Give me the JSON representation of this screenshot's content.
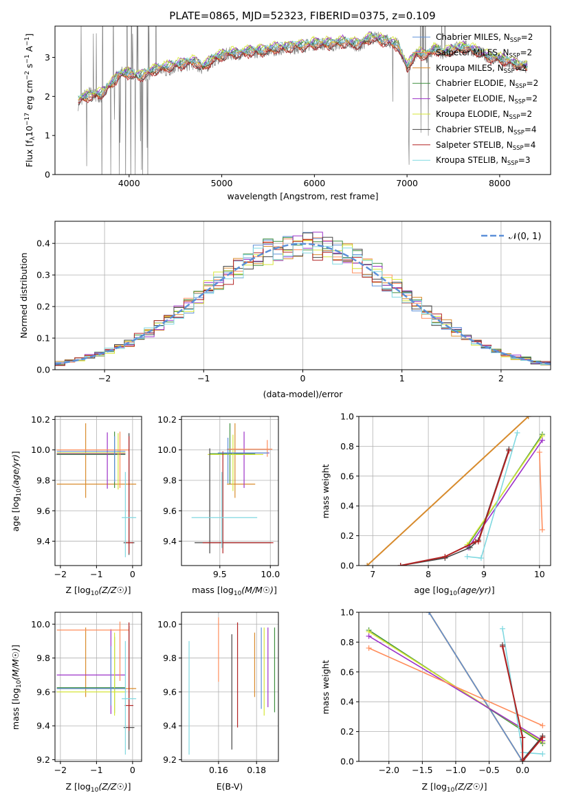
{
  "figure": {
    "title": "PLATE=0865, MJD=52323, FIBERID=0375, z=0.109"
  },
  "chart_data": [
    {
      "id": "spectrum",
      "type": "line",
      "xlabel": "wavelength [Angstrom, rest frame]",
      "ylabel": "Flux [fλ 10⁻¹⁷ erg cm⁻² s⁻¹ A⁻¹]",
      "xlim": [
        3200,
        8550
      ],
      "ylim": [
        0,
        3.8
      ],
      "xticks": [
        4000,
        5000,
        6000,
        7000,
        8000
      ],
      "yticks": [
        0,
        1,
        2,
        3
      ],
      "grid": false,
      "legend_position": "top-right",
      "data_series": {
        "name": "data",
        "color": "#808080",
        "x": [
          3450,
          3550,
          3700,
          3800,
          3900,
          4000,
          4100,
          4200,
          4300,
          4400,
          4500,
          4600,
          4700,
          4800,
          4900,
          5000,
          5100,
          5200,
          5300,
          5400,
          5500,
          5600,
          5700,
          5800,
          5900,
          6000,
          6100,
          6200,
          6300,
          6400,
          6500,
          6600,
          6700,
          6800,
          6900,
          7000,
          7100,
          7200,
          7300,
          7400,
          7500,
          7600,
          7700,
          7800,
          7900,
          8000,
          8100,
          8200,
          8300
        ],
        "y": [
          1.8,
          2.1,
          2.0,
          2.3,
          2.6,
          2.6,
          2.5,
          2.55,
          2.7,
          2.65,
          2.75,
          2.8,
          2.85,
          2.7,
          2.9,
          3.05,
          3.1,
          3.1,
          3.15,
          3.15,
          3.2,
          3.2,
          3.25,
          3.25,
          3.3,
          3.35,
          3.35,
          3.3,
          3.4,
          3.35,
          3.3,
          3.5,
          3.5,
          3.4,
          3.35,
          2.7,
          3.1,
          3.0,
          3.2,
          3.1,
          3.2,
          3.3,
          3.2,
          3.1,
          3.0,
          2.95,
          2.85,
          2.8,
          2.75
        ]
      },
      "models": {
        "x": [
          3450,
          3550,
          3700,
          3800,
          3900,
          4000,
          4100,
          4200,
          4300,
          4400,
          4500,
          4600,
          4700,
          4800,
          4900,
          5000,
          5100,
          5200,
          5300,
          5400,
          5500,
          5600,
          5700,
          5800,
          5900,
          6000,
          6100,
          6200,
          6300,
          6400,
          6500,
          6600,
          6700,
          6800,
          6900,
          7000,
          7100,
          7200,
          7300,
          7400,
          7500,
          7600,
          7700,
          7800,
          7900,
          8000,
          8100,
          8200,
          8300
        ],
        "base": [
          1.9,
          2.0,
          2.05,
          2.3,
          2.55,
          2.6,
          2.5,
          2.6,
          2.7,
          2.75,
          2.8,
          2.85,
          2.9,
          2.75,
          2.95,
          3.05,
          3.1,
          3.1,
          3.15,
          3.15,
          3.2,
          3.25,
          3.25,
          3.3,
          3.3,
          3.35,
          3.35,
          3.35,
          3.4,
          3.35,
          3.35,
          3.5,
          3.45,
          3.4,
          3.3,
          2.75,
          3.1,
          3.05,
          3.2,
          3.1,
          3.2,
          3.25,
          3.2,
          3.1,
          3.0,
          2.95,
          2.9,
          2.8,
          2.75
        ]
      },
      "series": [
        {
          "name": "Chabrier MILES, N_SSP=2",
          "label": "Chabrier MILES, N",
          "sub": "SSP",
          "suffix": "=2",
          "color": "#5b8fd8",
          "offset": 0.02
        },
        {
          "name": "Salpeter MILES, N_SSP=2",
          "label": "Salpeter MILES, N",
          "sub": "SSP",
          "suffix": "=2",
          "color": "#ff8c5a",
          "offset": -0.03
        },
        {
          "name": "Kroupa MILES, N_SSP=2",
          "label": "Kroupa MILES, N",
          "sub": "SSP",
          "suffix": "=2",
          "color": "#d98b2b",
          "offset": 0.0
        },
        {
          "name": "Chabrier ELODIE, N_SSP=2",
          "label": "Chabrier ELODIE, N",
          "sub": "SSP",
          "suffix": "=2",
          "color": "#3e8f3e",
          "offset": 0.05
        },
        {
          "name": "Salpeter ELODIE, N_SSP=2",
          "label": "Salpeter ELODIE, N",
          "sub": "SSP",
          "suffix": "=2",
          "color": "#9b30c8",
          "offset": 0.08
        },
        {
          "name": "Kroupa ELODIE, N_SSP=2",
          "label": "Kroupa ELODIE, N",
          "sub": "SSP",
          "suffix": "=2",
          "color": "#d5e635",
          "offset": 0.1
        },
        {
          "name": "Chabrier STELIB, N_SSP=4",
          "label": "Chabrier STELIB, N",
          "sub": "SSP",
          "suffix": "=4",
          "color": "#444444",
          "offset": -0.06
        },
        {
          "name": "Salpeter STELIB, N_SSP=4",
          "label": "Salpeter STELIB, N",
          "sub": "SSP",
          "suffix": "=4",
          "color": "#b22222",
          "offset": -0.08
        },
        {
          "name": "Kroupa STELIB, N_SSP=3",
          "label": "Kroupa STELIB, N",
          "sub": "SSP",
          "suffix": "=3",
          "color": "#7fd8e0",
          "offset": 0.04
        }
      ]
    },
    {
      "id": "residuals",
      "type": "histogram",
      "xlabel": "(data-model)/error",
      "ylabel": "Normed distribution",
      "xlim": [
        -2.5,
        2.5
      ],
      "ylim": [
        0,
        0.47
      ],
      "xticks": [
        -2,
        -1,
        0,
        1,
        2
      ],
      "yticks": [
        0.0,
        0.1,
        0.2,
        0.3,
        0.4
      ],
      "grid": true,
      "legend_position": "top-right",
      "legend_label": "𝒩(0, 1)",
      "bin_edges": [
        -2.5,
        -2.4,
        -2.3,
        -2.2,
        -2.1,
        -2.0,
        -1.9,
        -1.8,
        -1.7,
        -1.6,
        -1.5,
        -1.4,
        -1.3,
        -1.2,
        -1.1,
        -1.0,
        -0.9,
        -0.8,
        -0.7,
        -0.6,
        -0.5,
        -0.4,
        -0.3,
        -0.2,
        -0.1,
        0.0,
        0.1,
        0.2,
        0.3,
        0.4,
        0.5,
        0.6,
        0.7,
        0.8,
        0.9,
        1.0,
        1.1,
        1.2,
        1.3,
        1.4,
        1.5,
        1.6,
        1.7,
        1.8,
        1.9,
        2.0,
        2.1,
        2.2,
        2.3,
        2.4,
        2.5
      ]
    },
    {
      "id": "age-vs-Z",
      "type": "errorbar",
      "xlabel": "Z [log10(Z/Z☉)]",
      "ylabel": "age  [log10(age/yr)]",
      "xlim": [
        -2.15,
        0.25
      ],
      "ylim": [
        9.24,
        10.22
      ],
      "xticks": [
        -2,
        -1,
        0
      ],
      "yticks": [
        9.4,
        9.6,
        9.8,
        10.0,
        10.2
      ],
      "grid": true
    },
    {
      "id": "age-vs-mass",
      "type": "errorbar",
      "xlabel": "mass [log10(M/M☉)]",
      "ylabel": "",
      "xlim": [
        9.12,
        10.08
      ],
      "ylim": [
        9.24,
        10.22
      ],
      "xticks": [
        9.5,
        10.0
      ],
      "yticks": [
        9.4,
        9.6,
        9.8,
        10.0,
        10.2
      ],
      "grid": true
    },
    {
      "id": "massweight-vs-age",
      "type": "line",
      "xlabel": "age  [log10(age/yr)]",
      "ylabel": "mass weight",
      "xlim": [
        6.75,
        10.2
      ],
      "ylim": [
        0,
        1
      ],
      "xticks": [
        7,
        8,
        9,
        10
      ],
      "yticks": [
        0.0,
        0.2,
        0.4,
        0.6,
        0.8,
        1.0
      ],
      "grid": true
    },
    {
      "id": "mass-vs-Z",
      "type": "errorbar",
      "xlabel": "Z [log10(Z/Z☉)]",
      "ylabel": "mass [log10(M/M☉)]",
      "xlim": [
        -2.15,
        0.25
      ],
      "ylim": [
        9.19,
        10.07
      ],
      "xticks": [
        -2,
        -1,
        0
      ],
      "yticks": [
        9.2,
        9.4,
        9.6,
        9.8,
        10.0
      ],
      "grid": true
    },
    {
      "id": "mass-vs-ebv",
      "type": "errorbar",
      "xlabel": "E(B-V)",
      "ylabel": "",
      "xlim": [
        0.1405,
        0.1915
      ],
      "ylim": [
        9.19,
        10.07
      ],
      "xticks": [
        0.16,
        0.18
      ],
      "yticks": [
        9.2,
        9.4,
        9.6,
        9.8,
        10.0
      ],
      "grid": true
    },
    {
      "id": "massweight-vs-Z",
      "type": "line",
      "xlabel": "Z [log10(Z/Z☉)]",
      "ylabel": "mass weight",
      "xlim": [
        -2.45,
        0.42
      ],
      "ylim": [
        0,
        1
      ],
      "xticks": [
        -2.0,
        -1.5,
        -1.0,
        -0.5,
        0.0
      ],
      "yticks": [
        0.0,
        0.2,
        0.4,
        0.6,
        0.8,
        1.0
      ],
      "grid": true
    }
  ]
}
